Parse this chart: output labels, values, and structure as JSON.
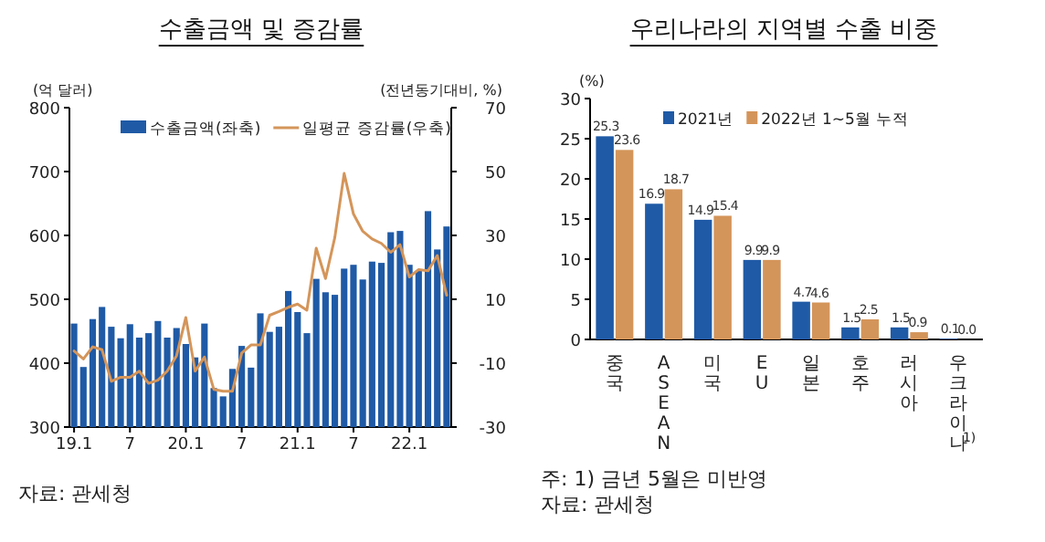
{
  "chart_data": [
    {
      "type": "bar",
      "title": "수출금액 및 증감률",
      "ylabel": "(억 달러)",
      "y2label": "(전년동기대비, %)",
      "categories": [
        "19.1",
        null,
        null,
        null,
        null,
        null,
        "7",
        null,
        null,
        null,
        null,
        null,
        "20.1",
        null,
        null,
        null,
        null,
        null,
        "7",
        null,
        null,
        null,
        null,
        null,
        "21.1",
        null,
        null,
        null,
        null,
        null,
        "7",
        null,
        null,
        null,
        null,
        null,
        "22.1",
        null,
        null,
        null,
        null
      ],
      "series": [
        {
          "name": "수출금액(좌축)",
          "color": "#1f5aa6",
          "values": [
            462,
            394,
            469,
            488,
            457,
            439,
            461,
            440,
            447,
            466,
            440,
            455,
            430,
            409,
            462,
            361,
            348,
            391,
            427,
            393,
            478,
            449,
            457,
            513,
            480,
            447,
            532,
            511,
            507,
            548,
            554,
            531,
            559,
            557,
            605,
            607,
            554,
            545,
            638,
            578,
            614
          ]
        },
        {
          "name": "일평균 증감률(우축)",
          "type": "line",
          "axis": "y2",
          "color": "#d4955a",
          "values": [
            -6.2,
            -8.7,
            -4.9,
            -5.8,
            -15.7,
            -14.4,
            -14.4,
            -12.5,
            -16.3,
            -15.3,
            -12.5,
            -7.7,
            4.3,
            -12.5,
            -8.1,
            -18.2,
            -18.8,
            -18.8,
            -6.8,
            -4.3,
            -4.3,
            5.0,
            6.2,
            7.5,
            8.5,
            6.6,
            26.0,
            16.5,
            29.4,
            49.4,
            36.7,
            31.3,
            28.9,
            27.5,
            24.7,
            27.1,
            17.0,
            19.3,
            18.9,
            23.7,
            11.3
          ]
        }
      ],
      "ylim": [
        300,
        800
      ],
      "yticks": [
        300,
        400,
        500,
        600,
        700,
        800
      ],
      "y2lim": [
        -30,
        70
      ],
      "y2ticks": [
        -30,
        -10,
        10,
        30,
        50,
        70
      ],
      "legend": "top",
      "annotations": [
        "자료: 관세청"
      ]
    },
    {
      "type": "bar",
      "title": "우리나라의 지역별 수출 비중",
      "ylabel": "(%)",
      "categories": [
        "중국",
        "ASEAN",
        "미국",
        "EU",
        "일본",
        "호주",
        "러시아",
        "우크라이나$^{1)}$"
      ],
      "series": [
        {
          "name": "2021년",
          "color": "#1f5aa6",
          "values": [
            25.3,
            16.9,
            14.9,
            9.9,
            4.7,
            1.5,
            1.5,
            0.1
          ],
          "value_labels": [
            "25.3",
            "16.9",
            "14.9",
            "9.9",
            "4.7",
            "1.5",
            "1.5",
            "0.1"
          ]
        },
        {
          "name": "2022년 1~5월 누적",
          "color": "#d4955a",
          "values": [
            23.6,
            18.7,
            15.4,
            9.9,
            4.6,
            2.5,
            0.9,
            0.0
          ],
          "value_labels": [
            "23.6",
            "18.7",
            "15.4",
            "9.9",
            "4.6",
            "2.5",
            "0.9",
            "0.0"
          ]
        }
      ],
      "ylim": [
        0,
        30
      ],
      "yticks": [
        0,
        5,
        10,
        15,
        20,
        25,
        30
      ],
      "legend": "top",
      "annotations": [
        "주: 1) 금년 5월은 미반영",
        "자료: 관세청"
      ]
    }
  ]
}
